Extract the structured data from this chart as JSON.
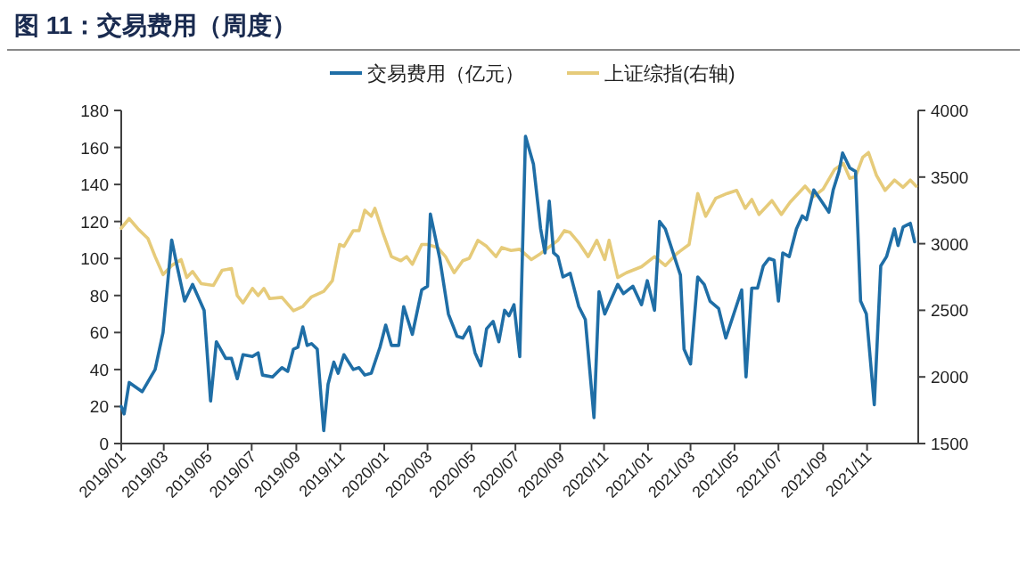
{
  "chart_data": {
    "type": "line",
    "title": "图 11：交易费用（周度）",
    "legend": "top",
    "grid": false,
    "xlim": [
      "2019-01-01",
      "2022-01-11"
    ],
    "xticks": [
      {
        "value": "2019-01",
        "label": "2019/01"
      },
      {
        "value": "2019-03",
        "label": "2019/03"
      },
      {
        "value": "2019-05",
        "label": "2019/05"
      },
      {
        "value": "2019-07",
        "label": "2019/07"
      },
      {
        "value": "2019-09",
        "label": "2019/09"
      },
      {
        "value": "2019-11",
        "label": "2019/11"
      },
      {
        "value": "2020-01",
        "label": "2020/01"
      },
      {
        "value": "2020-03",
        "label": "2020/03"
      },
      {
        "value": "2020-05",
        "label": "2020/05"
      },
      {
        "value": "2020-07",
        "label": "2020/07"
      },
      {
        "value": "2020-09",
        "label": "2020/09"
      },
      {
        "value": "2020-11",
        "label": "2020/11"
      },
      {
        "value": "2021-01",
        "label": "2021/01"
      },
      {
        "value": "2021-03",
        "label": "2021/03"
      },
      {
        "value": "2021-05",
        "label": "2021/05"
      },
      {
        "value": "2021-07",
        "label": "2021/07"
      },
      {
        "value": "2021-09",
        "label": "2021/09"
      },
      {
        "value": "2021-11",
        "label": "2021/11"
      }
    ],
    "ylim": [
      0,
      180
    ],
    "yticks": [
      0,
      20,
      40,
      60,
      80,
      100,
      120,
      140,
      160,
      180
    ],
    "y2lim": [
      1500,
      4000
    ],
    "y2ticks": [
      1500,
      2000,
      2500,
      3000,
      3500,
      4000
    ],
    "series": [
      {
        "name": "交易费用（亿元）",
        "color": "#1f6ea6",
        "x": [
          "2019-01-01",
          "2019-01-05",
          "2019-01-12",
          "2019-01-30",
          "2019-02-17",
          "2019-02-28",
          "2019-03-12",
          "2019-03-20",
          "2019-03-30",
          "2019-04-10",
          "2019-04-26",
          "2019-05-05",
          "2019-05-13",
          "2019-05-26",
          "2019-06-03",
          "2019-06-11",
          "2019-06-19",
          "2019-07-02",
          "2019-07-10",
          "2019-07-16",
          "2019-07-30",
          "2019-08-12",
          "2019-08-20",
          "2019-08-28",
          "2019-09-03",
          "2019-09-10",
          "2019-09-16",
          "2019-09-22",
          "2019-09-30",
          "2019-10-09",
          "2019-10-15",
          "2019-10-23",
          "2019-10-29",
          "2019-11-06",
          "2019-11-19",
          "2019-11-27",
          "2019-12-05",
          "2019-12-14",
          "2019-12-26",
          "2020-01-03",
          "2020-01-11",
          "2020-01-21",
          "2020-01-28",
          "2020-02-09",
          "2020-02-22",
          "2020-03-01",
          "2020-03-05",
          "2020-03-18",
          "2020-03-30",
          "2020-04-11",
          "2020-04-19",
          "2020-04-28",
          "2020-05-06",
          "2020-05-14",
          "2020-05-22",
          "2020-05-31",
          "2020-06-08",
          "2020-06-16",
          "2020-06-22",
          "2020-06-29",
          "2020-07-07",
          "2020-07-15",
          "2020-07-26",
          "2020-08-05",
          "2020-08-11",
          "2020-08-17",
          "2020-08-23",
          "2020-08-29",
          "2020-09-05",
          "2020-09-15",
          "2020-09-27",
          "2020-10-06",
          "2020-10-18",
          "2020-10-25",
          "2020-11-02",
          "2020-11-20",
          "2020-11-28",
          "2020-12-11",
          "2020-12-23",
          "2020-12-31",
          "2021-01-10",
          "2021-01-17",
          "2021-01-25",
          "2021-02-04",
          "2021-02-15",
          "2021-02-20",
          "2021-03-01",
          "2021-03-11",
          "2021-03-20",
          "2021-03-28",
          "2021-04-09",
          "2021-04-19",
          "2021-04-30",
          "2021-05-11",
          "2021-05-17",
          "2021-05-25",
          "2021-06-02",
          "2021-06-10",
          "2021-06-18",
          "2021-06-25",
          "2021-07-01",
          "2021-07-07",
          "2021-07-16",
          "2021-07-26",
          "2021-08-03",
          "2021-08-09",
          "2021-08-19",
          "2021-08-28",
          "2021-09-09",
          "2021-09-15",
          "2021-09-23",
          "2021-09-28",
          "2021-10-08",
          "2021-10-16",
          "2021-10-23",
          "2021-10-31",
          "2021-11-11",
          "2021-11-20",
          "2021-11-28",
          "2021-12-09",
          "2021-12-14",
          "2021-12-21",
          "2021-12-31",
          "2022-01-06"
        ],
        "values": [
          20,
          16,
          33,
          28,
          40,
          60,
          110,
          95,
          77,
          86,
          72,
          23,
          55,
          46,
          46,
          35,
          48,
          47,
          49,
          37,
          36,
          41,
          39,
          51,
          52,
          63,
          53,
          54,
          51,
          7,
          32,
          44,
          38,
          48,
          40,
          41,
          37,
          38,
          52,
          64,
          53,
          53,
          74,
          59,
          83,
          85,
          124,
          100,
          70,
          58,
          57,
          63,
          49,
          42,
          62,
          66,
          55,
          72,
          69,
          75,
          47,
          166,
          151,
          116,
          103,
          131,
          103,
          101,
          90,
          92,
          74,
          67,
          14,
          82,
          70,
          86,
          81,
          85,
          75,
          88,
          72,
          120,
          116,
          104,
          91,
          51,
          43,
          90,
          86,
          77,
          73,
          57,
          70,
          83,
          36,
          84,
          84,
          96,
          100,
          99,
          77,
          103,
          101,
          116,
          123,
          121,
          137,
          132,
          125,
          137,
          147,
          157,
          149,
          147,
          77,
          70,
          21,
          96,
          101,
          116,
          107,
          117,
          119,
          109
        ]
      },
      {
        "name": "上证综指(右轴)",
        "color": "#e6cb7a",
        "axis": "y2",
        "x": [
          "2019-01-01",
          "2019-01-12",
          "2019-01-25",
          "2019-02-07",
          "2019-02-17",
          "2019-02-28",
          "2019-03-12",
          "2019-03-25",
          "2019-04-02",
          "2019-04-10",
          "2019-04-22",
          "2019-05-09",
          "2019-05-21",
          "2019-06-03",
          "2019-06-11",
          "2019-06-19",
          "2019-07-02",
          "2019-07-10",
          "2019-07-18",
          "2019-07-26",
          "2019-08-12",
          "2019-08-28",
          "2019-09-10",
          "2019-09-22",
          "2019-10-09",
          "2019-10-21",
          "2019-10-31",
          "2019-11-06",
          "2019-11-19",
          "2019-11-27",
          "2019-12-05",
          "2019-12-14",
          "2019-12-19",
          "2019-12-30",
          "2020-01-11",
          "2020-01-24",
          "2020-02-01",
          "2020-02-09",
          "2020-02-22",
          "2020-03-01",
          "2020-03-15",
          "2020-03-26",
          "2020-04-07",
          "2020-04-19",
          "2020-04-28",
          "2020-05-10",
          "2020-05-22",
          "2020-06-04",
          "2020-06-12",
          "2020-06-25",
          "2020-07-07",
          "2020-07-23",
          "2020-08-05",
          "2020-08-29",
          "2020-09-07",
          "2020-09-15",
          "2020-09-27",
          "2020-10-10",
          "2020-10-22",
          "2020-11-02",
          "2020-11-08",
          "2020-11-20",
          "2020-12-02",
          "2020-12-23",
          "2021-01-10",
          "2021-01-25",
          "2021-02-10",
          "2021-02-27",
          "2021-03-11",
          "2021-03-22",
          "2021-04-05",
          "2021-04-21",
          "2021-05-04",
          "2021-05-16",
          "2021-05-25",
          "2021-06-04",
          "2021-06-22",
          "2021-07-05",
          "2021-07-17",
          "2021-08-07",
          "2021-08-19",
          "2021-09-01",
          "2021-09-17",
          "2021-09-29",
          "2021-10-08",
          "2021-10-16",
          "2021-10-26",
          "2021-11-03",
          "2021-11-14",
          "2021-11-26",
          "2021-12-09",
          "2021-12-21",
          "2021-12-31",
          "2022-01-08"
        ],
        "values": [
          3116,
          3188,
          3107,
          3039,
          2903,
          2768,
          2836,
          2881,
          2746,
          2791,
          2700,
          2687,
          2800,
          2813,
          2610,
          2556,
          2664,
          2610,
          2664,
          2588,
          2597,
          2497,
          2529,
          2601,
          2642,
          2723,
          2994,
          2980,
          3098,
          3098,
          3251,
          3206,
          3265,
          3084,
          2903,
          2872,
          2903,
          2845,
          2994,
          2994,
          2971,
          2903,
          2782,
          2872,
          2890,
          3025,
          2980,
          2903,
          2971,
          2949,
          2958,
          2881,
          2926,
          3025,
          3098,
          3084,
          3007,
          2903,
          3025,
          2881,
          3025,
          2746,
          2782,
          2827,
          2903,
          2836,
          2926,
          2994,
          3377,
          3206,
          3341,
          3377,
          3400,
          3265,
          3332,
          3219,
          3323,
          3219,
          3310,
          3432,
          3355,
          3409,
          3558,
          3603,
          3490,
          3504,
          3648,
          3684,
          3513,
          3400,
          3477,
          3423,
          3477,
          3432
        ]
      }
    ]
  }
}
